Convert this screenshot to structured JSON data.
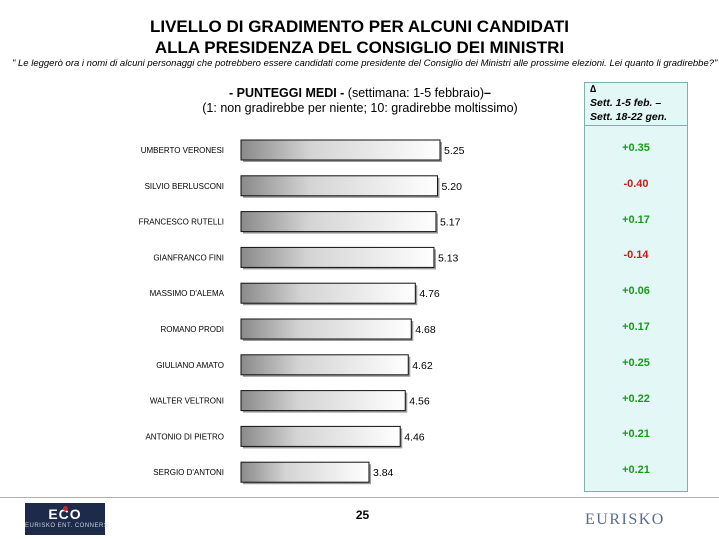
{
  "header": {
    "title_line1": "LIVELLO DI GRADIMENTO PER ALCUNI CANDIDATI",
    "title_line2": "ALLA PRESIDENZA DEL CONSIGLIO DEI MINISTRI",
    "note": "\" Le leggerò ora i nomi di alcuni personaggi che potrebbero essere candidati come presidente del Consiglio dei Ministri alle prossime elezioni. Lei quanto li gradirebbe?\""
  },
  "subtitle": {
    "bold": "- PUNTEGGI MEDI -",
    "normal": " (settimana: 1-5 febbraio)",
    "bold_end": "–",
    "scale": "(1: non gradirebbe per niente; 10: gradirebbe moltissimo)"
  },
  "delta": {
    "symbol": "∆",
    "line1": "Sett. 1-5 feb. –",
    "line2": "Sett. 18-22 gen.",
    "colors": {
      "positive": "#1a9a1a",
      "negative": "#cc1a1a"
    }
  },
  "chart_data": {
    "type": "bar",
    "orientation": "horizontal",
    "categories": [
      "UMBERTO VERONESI",
      "SILVIO BERLUSCONI",
      "FRANCESCO RUTELLI",
      "GIANFRANCO FINI",
      "MASSIMO D'ALEMA",
      "ROMANO PRODI",
      "GIULIANO AMATO",
      "WALTER VELTRONI",
      "ANTONIO DI PIETRO",
      "SERGIO D'ANTONI"
    ],
    "values": [
      5.25,
      5.2,
      5.17,
      5.13,
      4.76,
      4.68,
      4.62,
      4.56,
      4.46,
      3.84
    ],
    "value_labels": [
      "5.25",
      "5.20",
      "5.17",
      "5.13",
      "4.76",
      "4.68",
      "4.62",
      "4.56",
      "4.46",
      "3.84"
    ],
    "deltas": [
      "+0.35",
      "-0.40",
      "+0.17",
      "-0.14",
      "+0.06",
      "+0.17",
      "+0.25",
      "+0.22",
      "+0.21",
      "+0.21"
    ],
    "title": "",
    "xlabel": "",
    "ylabel": "",
    "xlim": [
      1.3,
      10
    ]
  },
  "footer": {
    "page_number": "25",
    "logo_left_mark": "ECO",
    "logo_left_text": "EURISKO ENT. CONNERS",
    "logo_right": "EURISKO"
  }
}
